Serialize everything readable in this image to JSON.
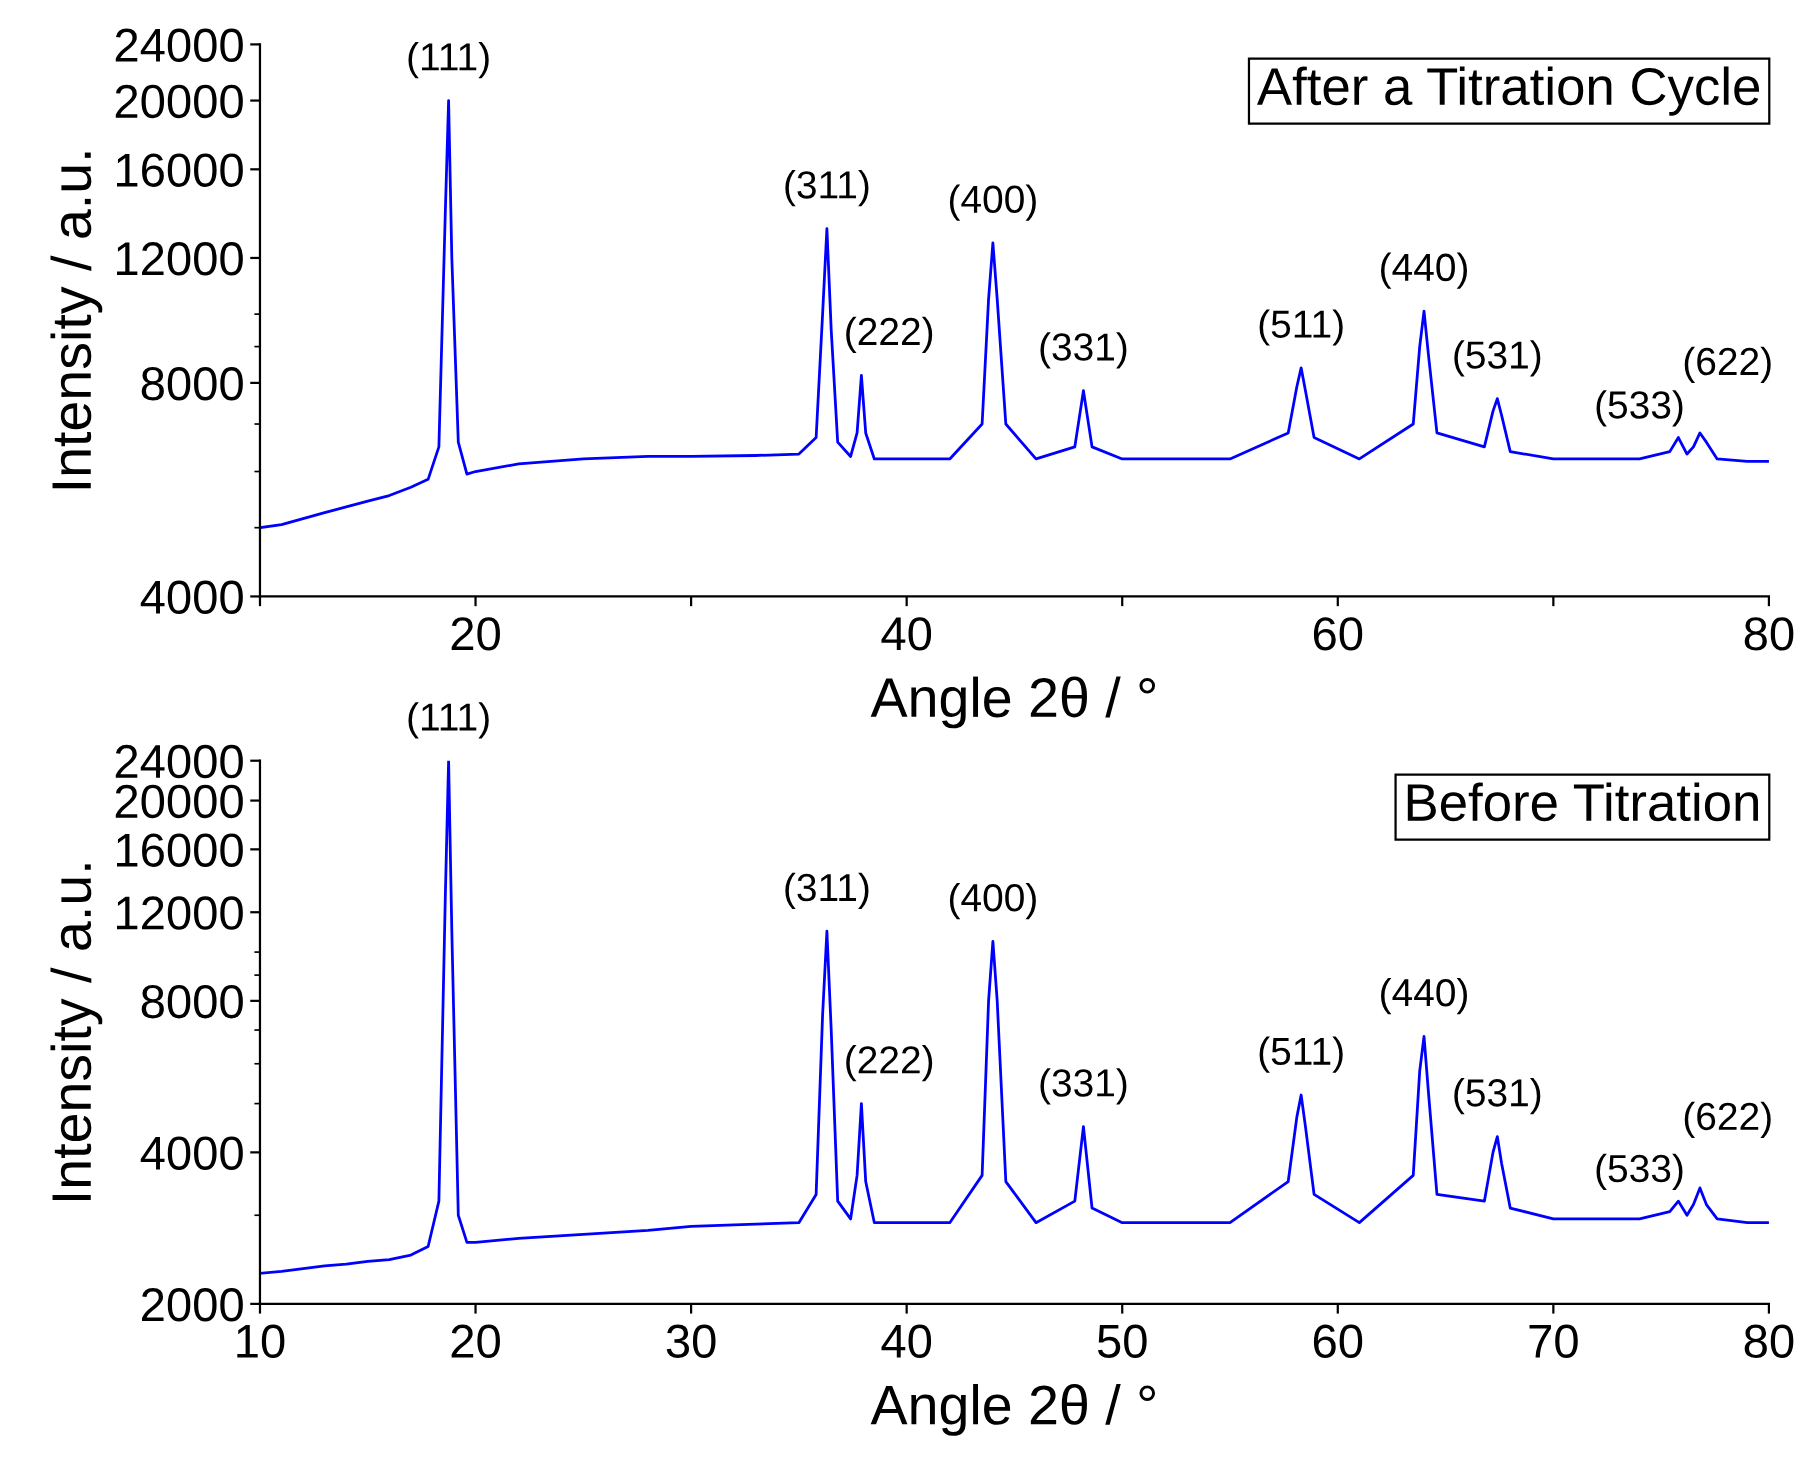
{
  "chart_data": [
    {
      "type": "line",
      "title": "After a Titration Cycle",
      "xlabel": "Angle 2θ / °",
      "ylabel": "Intensity / a.u.",
      "log": "y",
      "grid": false,
      "marker": "none",
      "line_style": "solid",
      "xlim": [
        10,
        80
      ],
      "xticks": [
        {
          "value": 10,
          "label": null
        },
        20,
        {
          "value": 30,
          "label": null
        },
        40,
        {
          "value": 50,
          "label": null
        },
        60,
        {
          "value": 70,
          "label": null
        },
        80
      ],
      "ylim": [
        4000,
        24000
      ],
      "yticks": [
        4000,
        8000,
        12000,
        16000,
        20000,
        24000
      ],
      "x": [
        10,
        11,
        12,
        13,
        14,
        15,
        16,
        17,
        17.8,
        18.3,
        18.6,
        18.75,
        18.9,
        19.2,
        19.6,
        20,
        22,
        25,
        28,
        30,
        33,
        35,
        35.8,
        36.1,
        36.3,
        36.5,
        36.8,
        37.4,
        37.7,
        37.9,
        38.1,
        38.5,
        40,
        42,
        43.5,
        43.8,
        44.0,
        44.2,
        44.6,
        46,
        47.8,
        48.2,
        48.6,
        50,
        52,
        55,
        57.7,
        58.1,
        58.3,
        58.5,
        58.9,
        61,
        63.5,
        63.8,
        64.0,
        64.2,
        64.6,
        66.8,
        67.2,
        67.4,
        67.6,
        68,
        70,
        72,
        74,
        75.4,
        75.8,
        76.2,
        76.5,
        76.8,
        77.1,
        77.6,
        79,
        80
      ],
      "series": [
        {
          "color": "#0000ff",
          "values": [
            5000,
            5050,
            5150,
            5250,
            5350,
            5450,
            5550,
            5700,
            5850,
            6500,
            14000,
            20000,
            12000,
            6600,
            5950,
            6000,
            6150,
            6250,
            6300,
            6300,
            6320,
            6350,
            6700,
            10000,
            13200,
            9500,
            6600,
            6300,
            6800,
            8200,
            6800,
            6250,
            6250,
            6250,
            7000,
            10500,
            12600,
            10500,
            7000,
            6250,
            6500,
            7800,
            6500,
            6250,
            6250,
            6250,
            6800,
            7900,
            8400,
            7800,
            6700,
            6250,
            7000,
            9000,
            10100,
            8800,
            6800,
            6500,
            7300,
            7600,
            7200,
            6400,
            6250,
            6250,
            6250,
            6400,
            6700,
            6350,
            6500,
            6800,
            6600,
            6250,
            6200,
            6200
          ]
        }
      ],
      "annotations": [
        {
          "text": "(111)",
          "x": 18.75,
          "y": 20000
        },
        {
          "text": "(311)",
          "x": 36.3,
          "y": 13200
        },
        {
          "text": "(222)",
          "x": 37.9,
          "y": 8200
        },
        {
          "text": "(400)",
          "x": 44.0,
          "y": 12600
        },
        {
          "text": "(331)",
          "x": 48.2,
          "y": 7800
        },
        {
          "text": "(511)",
          "x": 58.3,
          "y": 8400
        },
        {
          "text": "(440)",
          "x": 64.0,
          "y": 10100
        },
        {
          "text": "(531)",
          "x": 67.4,
          "y": 7600
        },
        {
          "text": "(533)",
          "x": 75.8,
          "y": 6700
        },
        {
          "text": "(622)",
          "x": 76.8,
          "y": 6800
        }
      ]
    },
    {
      "type": "line",
      "title": "Before Titration",
      "xlabel": "Angle 2θ / °",
      "ylabel": "Intensity / a.u.",
      "log": "y",
      "grid": false,
      "marker": "none",
      "line_style": "solid",
      "xlim": [
        10,
        80
      ],
      "xticks": [
        10,
        20,
        30,
        40,
        50,
        60,
        70,
        80
      ],
      "ylim": [
        2000,
        24000
      ],
      "yticks": [
        2000,
        4000,
        8000,
        12000,
        16000,
        20000,
        24000
      ],
      "x": [
        10,
        11,
        12,
        13,
        14,
        15,
        16,
        17,
        17.8,
        18.3,
        18.6,
        18.75,
        18.9,
        19.2,
        19.6,
        20,
        22,
        25,
        28,
        30,
        33,
        35,
        35.8,
        36.1,
        36.3,
        36.5,
        36.8,
        37.4,
        37.7,
        37.9,
        38.1,
        38.5,
        40,
        42,
        43.5,
        43.8,
        44.0,
        44.2,
        44.6,
        46,
        47.8,
        48.2,
        48.6,
        50,
        52,
        55,
        57.7,
        58.1,
        58.3,
        58.5,
        58.9,
        61,
        63.5,
        63.8,
        64.0,
        64.2,
        64.6,
        66.8,
        67.2,
        67.4,
        67.6,
        68,
        70,
        72,
        74,
        75.4,
        75.8,
        76.2,
        76.5,
        76.8,
        77.1,
        77.6,
        79,
        80
      ],
      "series": [
        {
          "color": "#0000ff",
          "values": [
            2300,
            2320,
            2350,
            2380,
            2400,
            2430,
            2450,
            2500,
            2600,
            3200,
            13000,
            24000,
            11000,
            3000,
            2650,
            2650,
            2700,
            2750,
            2800,
            2850,
            2880,
            2900,
            3300,
            7500,
            11000,
            7000,
            3200,
            2950,
            3600,
            5000,
            3500,
            2900,
            2900,
            2900,
            3600,
            8000,
            10500,
            8000,
            3500,
            2900,
            3200,
            4500,
            3100,
            2900,
            2900,
            2900,
            3500,
            4700,
            5200,
            4500,
            3300,
            2900,
            3600,
            5800,
            6800,
            5300,
            3300,
            3200,
            4000,
            4300,
            3800,
            3100,
            2950,
            2950,
            2950,
            3050,
            3200,
            3000,
            3150,
            3400,
            3150,
            2950,
            2900,
            2900
          ]
        }
      ],
      "annotations": [
        {
          "text": "(111)",
          "x": 18.75,
          "y": 24000
        },
        {
          "text": "(311)",
          "x": 36.3,
          "y": 11000
        },
        {
          "text": "(222)",
          "x": 37.9,
          "y": 5000
        },
        {
          "text": "(400)",
          "x": 44.0,
          "y": 10500
        },
        {
          "text": "(331)",
          "x": 48.2,
          "y": 4500
        },
        {
          "text": "(511)",
          "x": 58.3,
          "y": 5200
        },
        {
          "text": "(440)",
          "x": 64.0,
          "y": 6800
        },
        {
          "text": "(531)",
          "x": 67.4,
          "y": 4300
        },
        {
          "text": "(533)",
          "x": 75.8,
          "y": 3200
        },
        {
          "text": "(622)",
          "x": 76.8,
          "y": 3400
        }
      ]
    }
  ]
}
